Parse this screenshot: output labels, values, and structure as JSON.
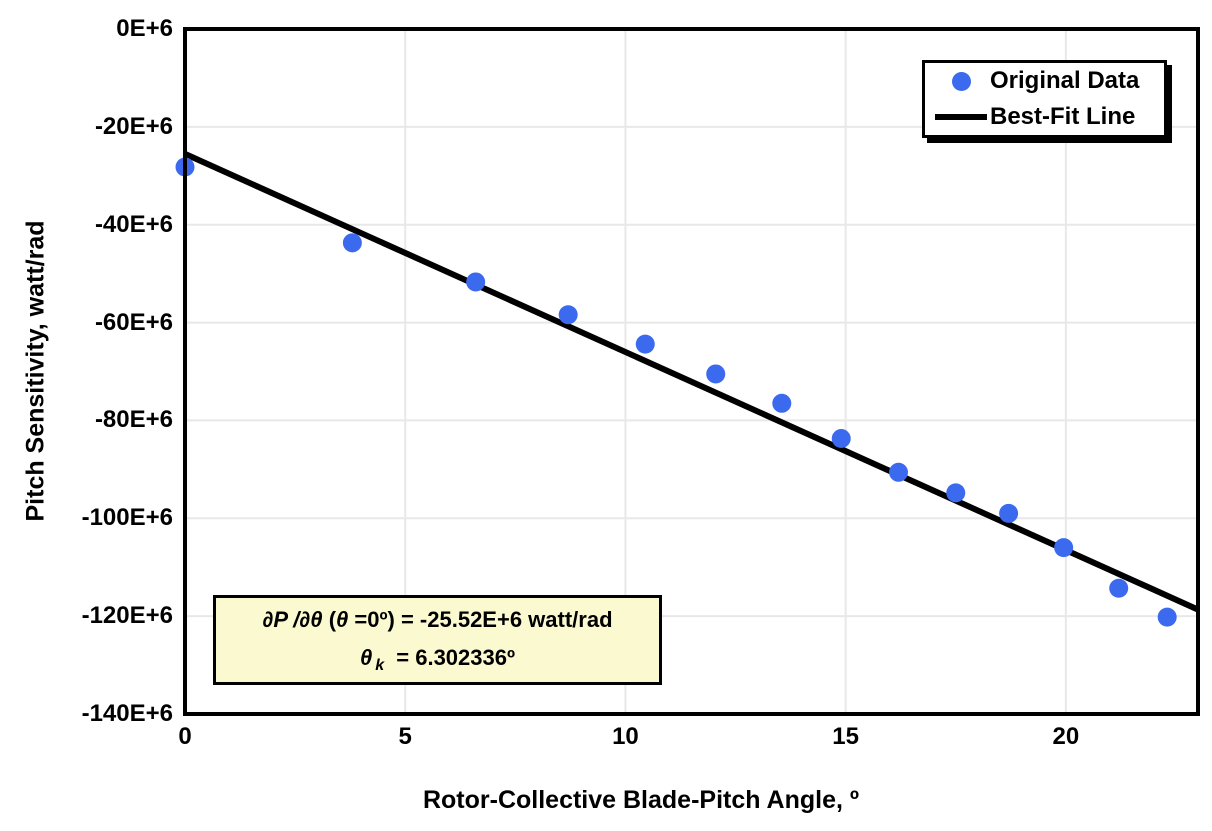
{
  "figure": {
    "background": "#FFFFFF",
    "frame_color": "#000000",
    "gridline_color": "#E8E8E8",
    "accent_blue": "#3B6AEE",
    "annotation_bg": "#FBF9CF"
  },
  "chart_data": {
    "type": "scatter",
    "title": "",
    "xlabel": "Rotor-Collective Blade-Pitch Angle, º",
    "ylabel": "Pitch Sensitivity, watt/rad",
    "xlim": [
      0,
      23
    ],
    "ylim_E6": [
      -140,
      0
    ],
    "y_units": "E+6 watt/rad",
    "x_ticks": [
      0,
      5,
      10,
      15,
      20
    ],
    "x_tick_labels": [
      "0",
      "5",
      "10",
      "15",
      "20"
    ],
    "y_ticks_E6": [
      0,
      -20,
      -40,
      -60,
      -80,
      -100,
      -120,
      -140
    ],
    "y_tick_labels": [
      "0E+6",
      "-20E+6",
      "-40E+6",
      "-60E+6",
      "-80E+6",
      "-100E+6",
      "-120E+6",
      "-140E+6"
    ],
    "grid": true,
    "legend_position": "top-right",
    "series": [
      {
        "name": "Original Data",
        "type": "scatter",
        "marker": "circle",
        "color": "#3B6AEE",
        "x": [
          0.0,
          3.8,
          6.6,
          8.7,
          10.45,
          12.05,
          13.55,
          14.9,
          16.2,
          17.5,
          18.7,
          19.95,
          21.2,
          22.3
        ],
        "y_E6": [
          -28.2,
          -43.7,
          -51.7,
          -58.4,
          -64.4,
          -70.5,
          -76.5,
          -83.7,
          -90.6,
          -94.8,
          -99.0,
          -106.0,
          -114.3,
          -120.2
        ]
      },
      {
        "name": "Best-Fit Line",
        "type": "line",
        "color": "#000000",
        "x": [
          0,
          23
        ],
        "y_E6": [
          -25.52,
          -118.66
        ]
      }
    ]
  },
  "legend": {
    "items": [
      {
        "label": "Original Data",
        "marker": "circle-marker",
        "color": "#3B6AEE"
      },
      {
        "label": "Best-Fit Line",
        "marker": "line-marker",
        "color": "#000000"
      }
    ]
  },
  "annotation": {
    "line1_sym": "∂P /∂θ ",
    "line1_paren": "(",
    "line1_theta": "θ ",
    "line1_rest": "=0º) = -25.52E+6 watt/rad",
    "line2_theta": "θ",
    "line2_sub": "k",
    "line2_rest": " = 6.302336º"
  }
}
